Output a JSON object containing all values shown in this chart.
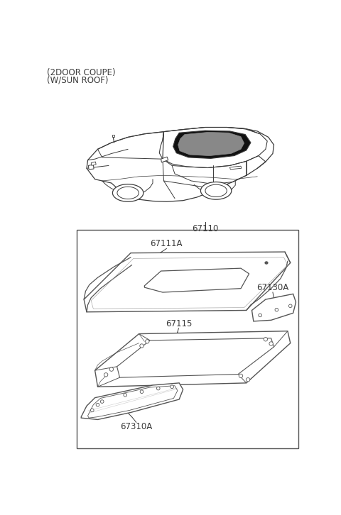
{
  "title_line1": "(2DOOR COUPE)",
  "title_line2": "(W/SUN ROOF)",
  "bg_color": "#ffffff",
  "label_67110": "67110",
  "label_67111A": "67111A",
  "label_67115": "67115",
  "label_67130A": "67130A",
  "label_67310A": "67310A",
  "text_color": "#3a3a3a",
  "line_color": "#3a3a3a",
  "sunroof_fill": "#111111",
  "part_fill": "#ffffff",
  "part_edge": "#555555",
  "box_color": "#555555"
}
